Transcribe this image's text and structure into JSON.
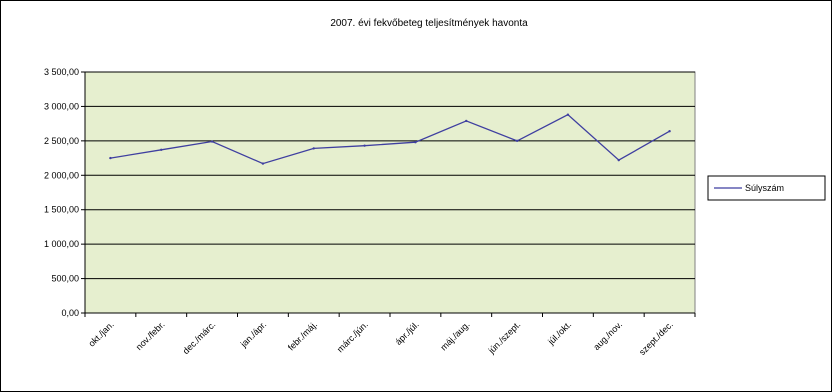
{
  "chart_data": {
    "type": "line",
    "title": "2007. évi fekvőbeteg teljesítmények havonta",
    "xlabel": "",
    "ylabel": "",
    "categories": [
      "okt./jan.",
      "nov./febr.",
      "dec./márc.",
      "jan./ápr.",
      "febr./máj.",
      "márc./jún.",
      "ápr./júl.",
      "máj./aug.",
      "jún./szept.",
      "júl./okt.",
      "aug./nov.",
      "szept./dec."
    ],
    "series": [
      {
        "name": "Súlyszám",
        "color": "#3f3fa0",
        "values": [
          2250,
          2370,
          2490,
          2170,
          2390,
          2430,
          2480,
          2790,
          2500,
          2880,
          2220,
          2640
        ]
      }
    ],
    "ylim": [
      0,
      3500
    ],
    "yticks": [
      "0,00",
      "500,00",
      "1 000,00",
      "1 500,00",
      "2 000,00",
      "2 500,00",
      "3 000,00",
      "3 500,00"
    ],
    "grid": true,
    "plot_background": "#e6efcf",
    "legend_position": "right"
  }
}
